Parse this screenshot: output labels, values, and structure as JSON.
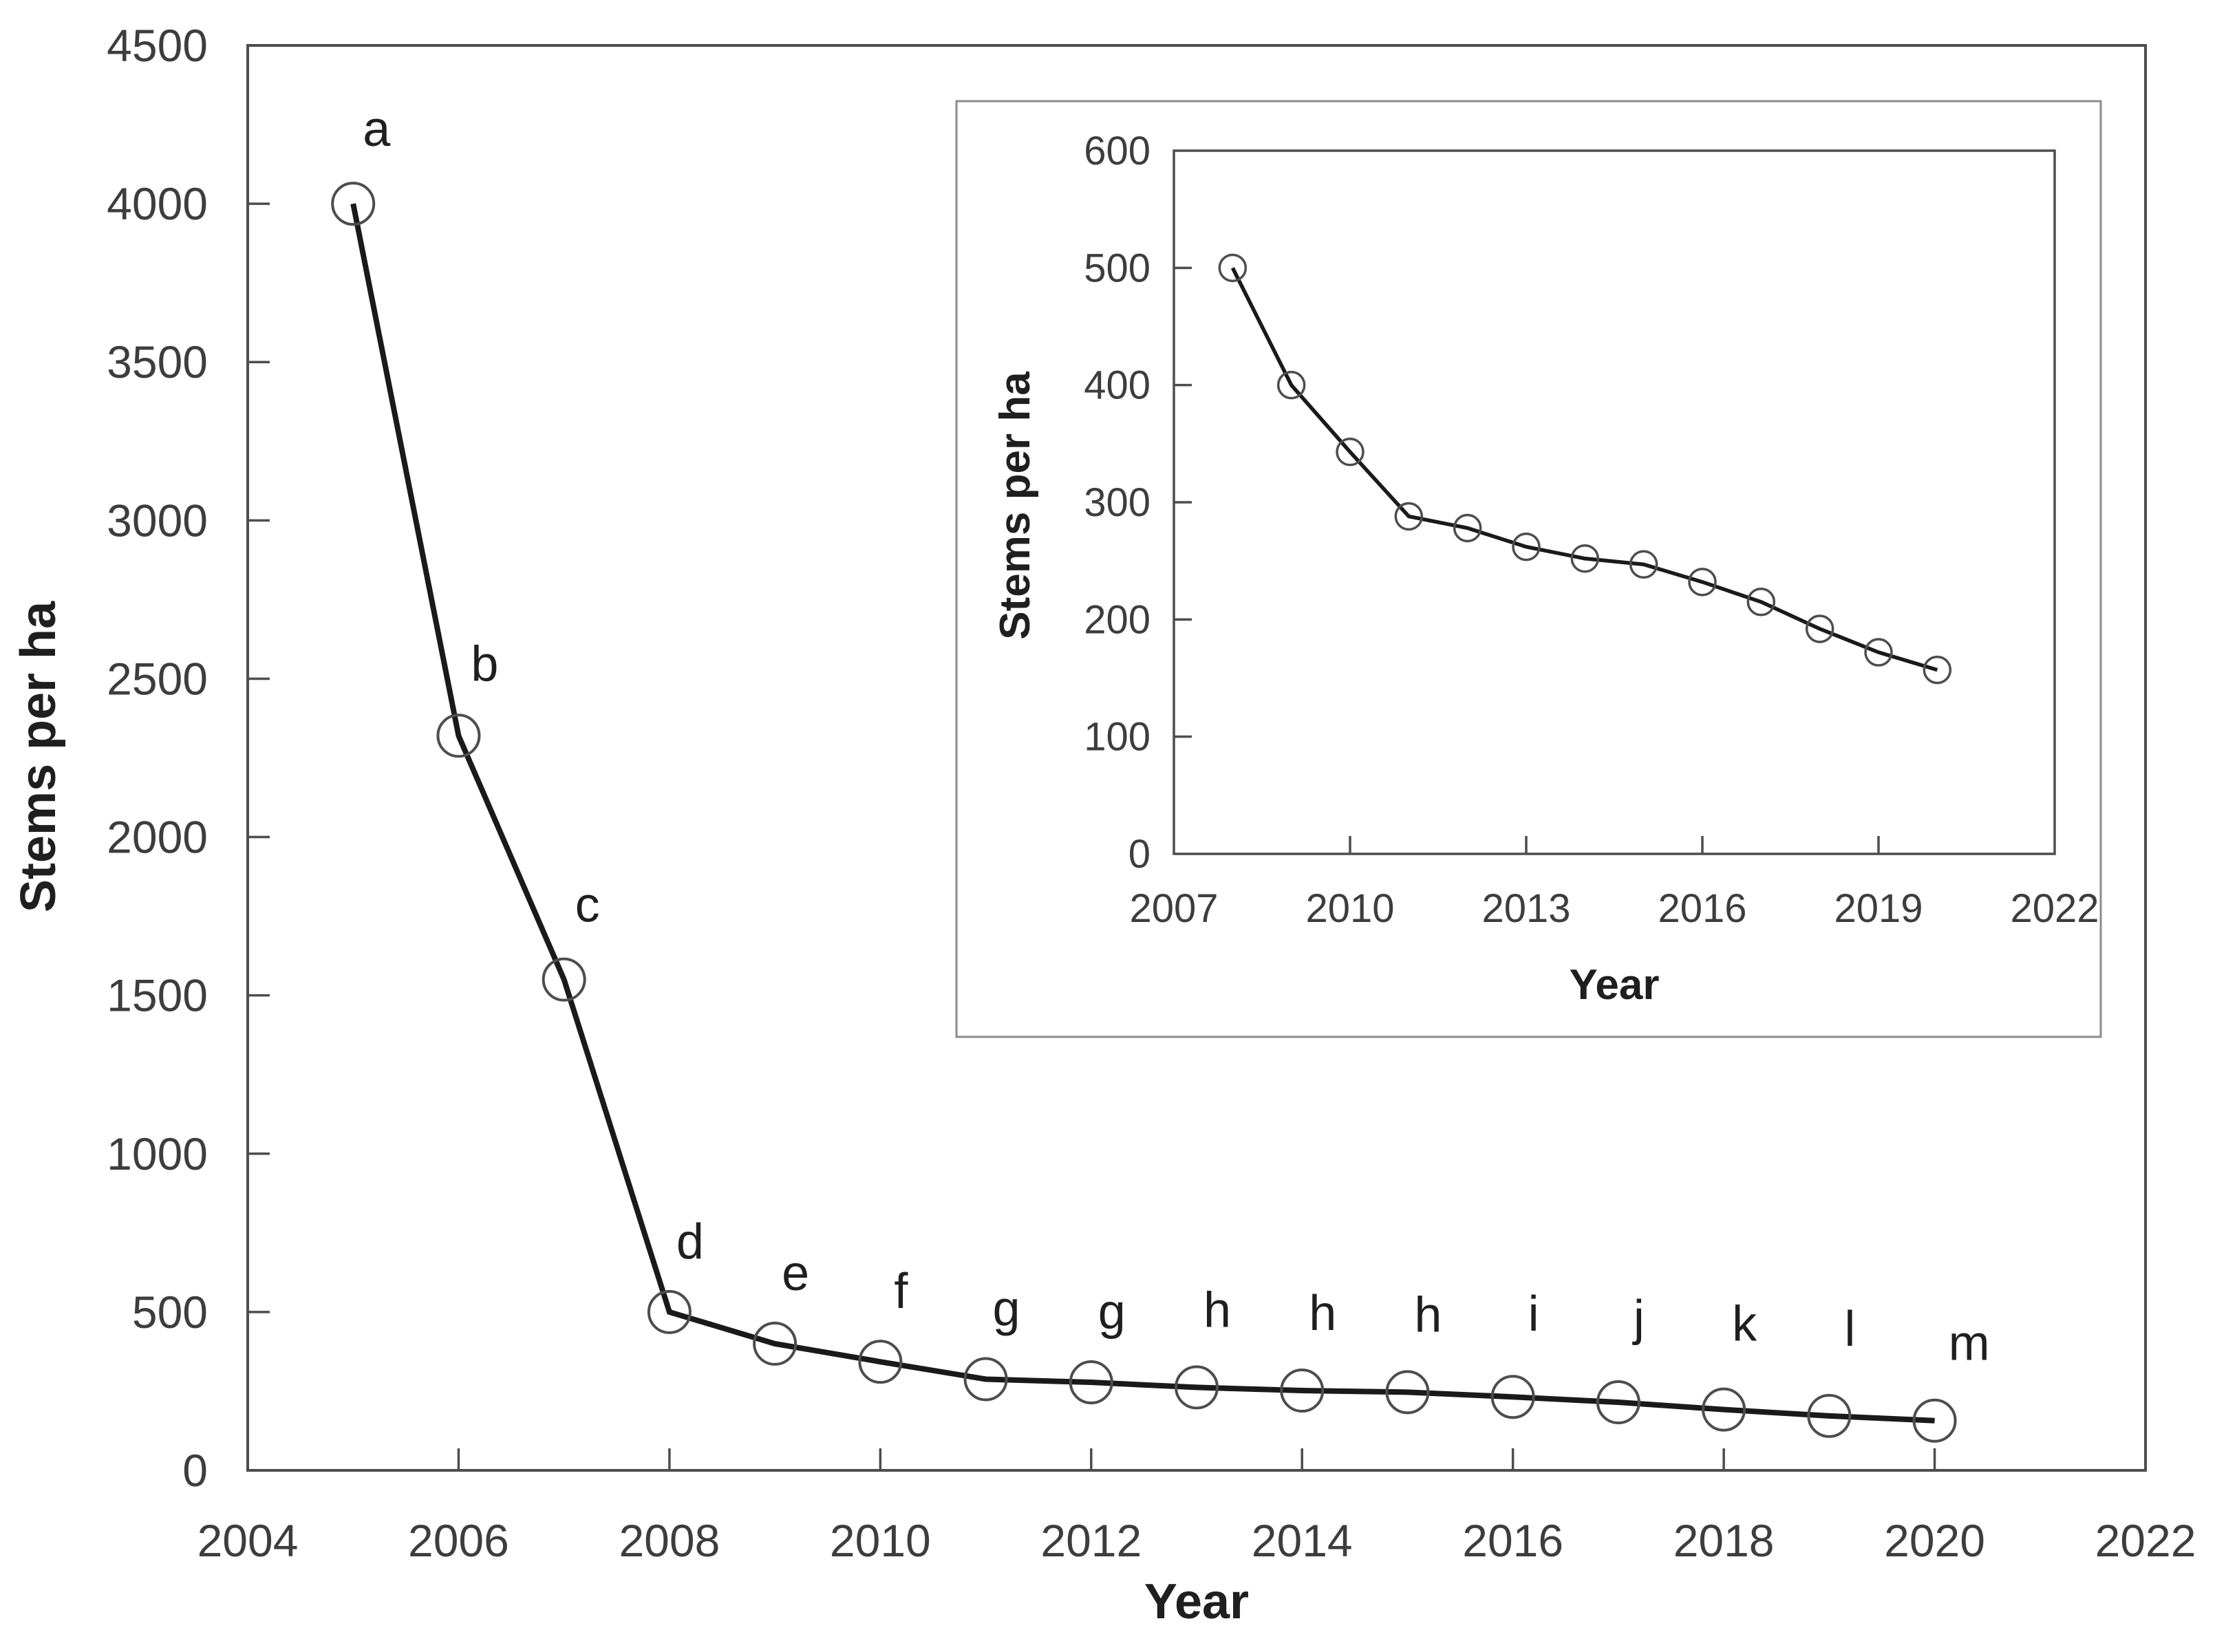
{
  "figure": {
    "background": "#ffffff",
    "axis_color": "#4d4d4d",
    "inset_frame_color": "#8c8c8c",
    "tick_text_color": "#3d3d3d",
    "series_line_color": "#1a1a1a",
    "marker_stroke_color": "#4d4d4d"
  },
  "chart_data": [
    {
      "id": "main",
      "type": "line",
      "title": "",
      "xlabel": "Year",
      "ylabel": "Stems per ha",
      "xlim": [
        2004,
        2022
      ],
      "ylim": [
        0,
        4500
      ],
      "xticks": [
        2004,
        2006,
        2008,
        2010,
        2012,
        2014,
        2016,
        2018,
        2020,
        2022
      ],
      "yticks": [
        0,
        500,
        1000,
        1500,
        2000,
        2500,
        3000,
        3500,
        4000,
        4500
      ],
      "grid": false,
      "legend": false,
      "marker": "open-circle",
      "series": [
        {
          "name": "Stems per ha",
          "x": [
            2005,
            2006,
            2007,
            2008,
            2009,
            2010,
            2011,
            2012,
            2013,
            2014,
            2015,
            2016,
            2017,
            2018,
            2019,
            2020
          ],
          "y": [
            4000,
            2320,
            1550,
            500,
            400,
            343,
            288,
            278,
            262,
            252,
            247,
            232,
            215,
            192,
            172,
            157
          ],
          "point_labels": [
            "a",
            "b",
            "c",
            "d",
            "e",
            "f",
            "g",
            "g",
            "h",
            "h",
            "h",
            "i",
            "j",
            "k",
            "l",
            "m"
          ]
        }
      ]
    },
    {
      "id": "inset",
      "type": "line",
      "title": "",
      "xlabel": "Year",
      "ylabel": "Stems per ha",
      "xlim": [
        2007,
        2022
      ],
      "ylim": [
        0,
        600
      ],
      "xticks": [
        2007,
        2010,
        2013,
        2016,
        2019,
        2022
      ],
      "yticks": [
        0,
        100,
        200,
        300,
        400,
        500,
        600
      ],
      "grid": false,
      "legend": false,
      "marker": "open-circle",
      "series": [
        {
          "name": "Stems per ha",
          "x": [
            2008,
            2009,
            2010,
            2011,
            2012,
            2013,
            2014,
            2015,
            2016,
            2017,
            2018,
            2019,
            2020
          ],
          "y": [
            500,
            400,
            343,
            288,
            278,
            262,
            252,
            247,
            232,
            215,
            192,
            172,
            157
          ],
          "point_labels": []
        }
      ]
    }
  ]
}
